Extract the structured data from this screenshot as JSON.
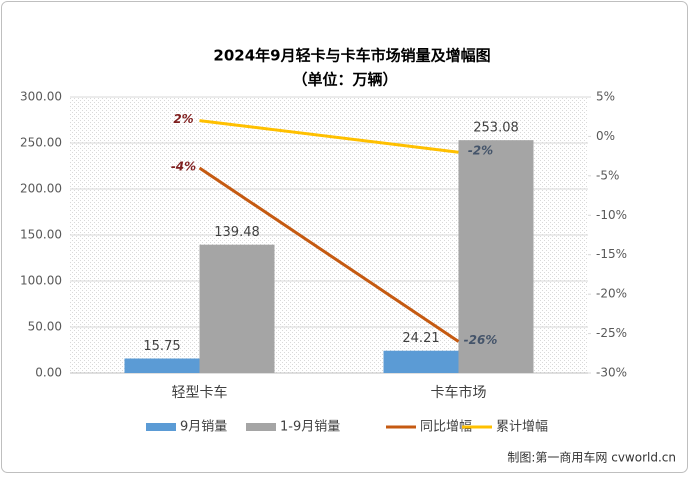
{
  "chart_data": {
    "type": "bar-line",
    "title": "2024年9月轻卡与卡车市场销量及增幅图",
    "subtitle": "（单位：万辆）",
    "categories": [
      "轻型卡车",
      "卡车市场"
    ],
    "series": [
      {
        "name": "9月销量",
        "color": "#5b9bd5",
        "kind": "bar",
        "values": [
          15.75,
          24.21
        ],
        "value_labels": [
          "15.75",
          "24.21"
        ]
      },
      {
        "name": "1-9月销量",
        "color": "#a5a5a5",
        "kind": "bar",
        "values": [
          139.48,
          253.08
        ],
        "value_labels": [
          "139.48",
          "253.08"
        ]
      },
      {
        "name": "同比增幅",
        "color": "#c55a11",
        "kind": "line",
        "axis": "y2",
        "values": [
          -4,
          -26
        ],
        "value_labels": [
          "-4%",
          "-26%"
        ]
      },
      {
        "name": "累计增幅",
        "color": "#ffc000",
        "kind": "line",
        "axis": "y2",
        "values": [
          2,
          -2
        ],
        "value_labels": [
          "2%",
          "-2%"
        ]
      }
    ],
    "ylim": [
      0,
      300
    ],
    "yticks": [
      {
        "value": 0,
        "label": "0.00"
      },
      {
        "value": 50,
        "label": "50.00"
      },
      {
        "value": 100,
        "label": "100.00"
      },
      {
        "value": 150,
        "label": "150.00"
      },
      {
        "value": 200,
        "label": "200.00"
      },
      {
        "value": 250,
        "label": "250.00"
      },
      {
        "value": 300,
        "label": "300.00"
      }
    ],
    "y2lim": [
      -30,
      5
    ],
    "y2ticks": [
      {
        "value": 5,
        "label": "5%"
      },
      {
        "value": 0,
        "label": "0%"
      },
      {
        "value": -5,
        "label": "-5%"
      },
      {
        "value": -10,
        "label": "-10%"
      },
      {
        "value": -15,
        "label": "-15%"
      },
      {
        "value": -20,
        "label": "-20%"
      },
      {
        "value": -25,
        "label": "-25%"
      },
      {
        "value": -30,
        "label": "-30%"
      }
    ],
    "grid": true,
    "legend": "bottom",
    "source": "制图:第一商用车网 cvworld.cn"
  }
}
